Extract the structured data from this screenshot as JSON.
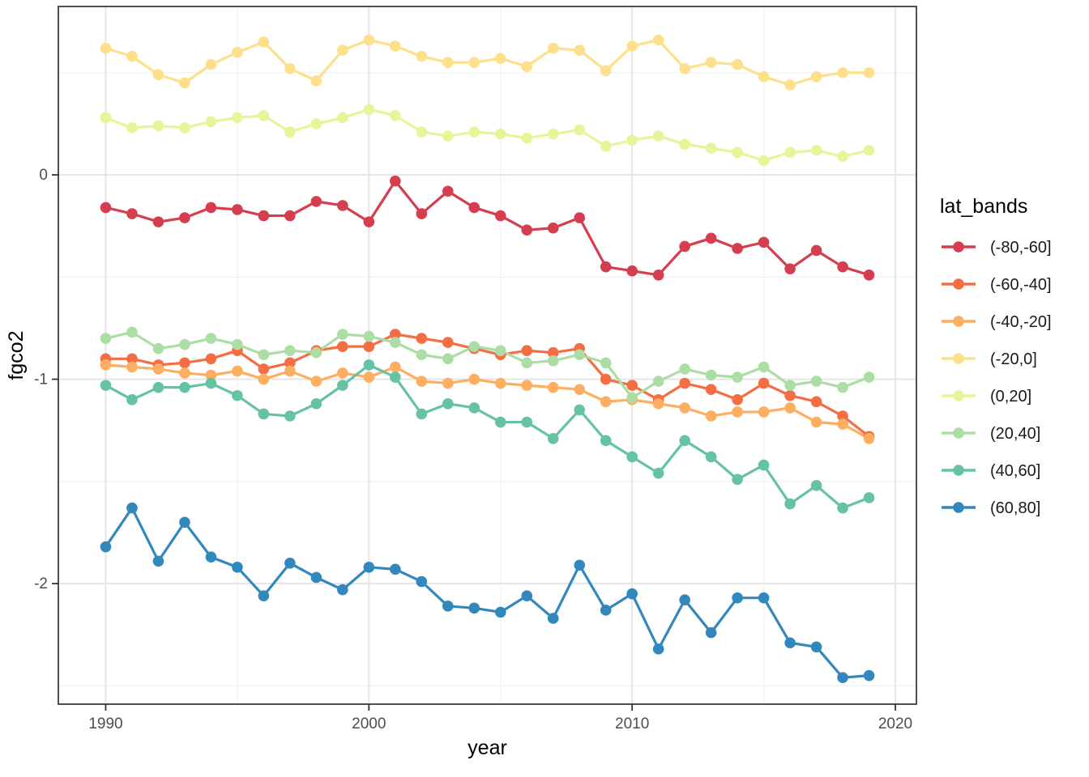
{
  "chart_data": {
    "type": "line",
    "title": "",
    "xlabel": "year",
    "ylabel": "fgco2",
    "legend_title": "lat_bands",
    "legend_position": "right",
    "grid": true,
    "xlim": [
      1988.2,
      2020.8
    ],
    "ylim": [
      -2.59,
      0.824
    ],
    "x_ticks": [
      1990,
      2000,
      2010,
      2020
    ],
    "x_tick_labels": [
      "1990",
      "2000",
      "2010",
      "2020"
    ],
    "x_minor": [
      1995,
      2005,
      2015
    ],
    "y_ticks": [
      0,
      -1,
      -2
    ],
    "y_tick_labels": [
      "0",
      "-1",
      "-2"
    ],
    "y_minor": [
      0.5,
      -0.5,
      -1.5,
      -2.5
    ],
    "x": [
      1990,
      1991,
      1992,
      1993,
      1994,
      1995,
      1996,
      1997,
      1998,
      1999,
      2000,
      2001,
      2002,
      2003,
      2004,
      2005,
      2006,
      2007,
      2008,
      2009,
      2010,
      2011,
      2012,
      2013,
      2014,
      2015,
      2016,
      2017,
      2018,
      2019
    ],
    "series": [
      {
        "name": "(-80,-60]",
        "color": "#d53e4f",
        "values": [
          -0.16,
          -0.19,
          -0.23,
          -0.21,
          -0.16,
          -0.17,
          -0.2,
          -0.2,
          -0.13,
          -0.15,
          -0.23,
          -0.03,
          -0.19,
          -0.08,
          -0.16,
          -0.2,
          -0.27,
          -0.26,
          -0.21,
          -0.45,
          -0.47,
          -0.49,
          -0.35,
          -0.31,
          -0.36,
          -0.33,
          -0.46,
          -0.37,
          -0.45,
          -0.49
        ]
      },
      {
        "name": "(-60,-40]",
        "color": "#f46d43",
        "values": [
          -0.9,
          -0.9,
          -0.93,
          -0.92,
          -0.9,
          -0.86,
          -0.95,
          -0.92,
          -0.86,
          -0.84,
          -0.84,
          -0.78,
          -0.8,
          -0.82,
          -0.85,
          -0.88,
          -0.86,
          -0.87,
          -0.85,
          -1.0,
          -1.03,
          -1.1,
          -1.02,
          -1.05,
          -1.1,
          -1.02,
          -1.08,
          -1.11,
          -1.18,
          -1.28
        ]
      },
      {
        "name": "(-40,-20]",
        "color": "#fdae61",
        "values": [
          -0.93,
          -0.94,
          -0.95,
          -0.97,
          -0.98,
          -0.96,
          -1.0,
          -0.96,
          -1.01,
          -0.97,
          -0.99,
          -0.94,
          -1.01,
          -1.02,
          -1.0,
          -1.02,
          -1.03,
          -1.04,
          -1.05,
          -1.11,
          -1.1,
          -1.12,
          -1.14,
          -1.18,
          -1.16,
          -1.16,
          -1.14,
          -1.21,
          -1.22,
          -1.29
        ]
      },
      {
        "name": "(-20,0]",
        "color": "#fee08b",
        "values": [
          0.62,
          0.58,
          0.49,
          0.45,
          0.54,
          0.6,
          0.65,
          0.52,
          0.46,
          0.61,
          0.66,
          0.63,
          0.58,
          0.55,
          0.55,
          0.57,
          0.53,
          0.62,
          0.61,
          0.51,
          0.63,
          0.66,
          0.52,
          0.55,
          0.54,
          0.48,
          0.44,
          0.48,
          0.5,
          0.5
        ]
      },
      {
        "name": "(0,20]",
        "color": "#e6f598",
        "values": [
          0.28,
          0.23,
          0.24,
          0.23,
          0.26,
          0.28,
          0.29,
          0.21,
          0.25,
          0.28,
          0.32,
          0.29,
          0.21,
          0.19,
          0.21,
          0.2,
          0.18,
          0.2,
          0.22,
          0.14,
          0.17,
          0.19,
          0.15,
          0.13,
          0.11,
          0.07,
          0.11,
          0.12,
          0.09,
          0.12
        ]
      },
      {
        "name": "(20,40]",
        "color": "#abdda4",
        "values": [
          -0.8,
          -0.77,
          -0.85,
          -0.83,
          -0.8,
          -0.83,
          -0.88,
          -0.86,
          -0.87,
          -0.78,
          -0.79,
          -0.82,
          -0.88,
          -0.9,
          -0.84,
          -0.86,
          -0.92,
          -0.91,
          -0.88,
          -0.92,
          -1.09,
          -1.01,
          -0.95,
          -0.98,
          -0.99,
          -0.94,
          -1.03,
          -1.01,
          -1.04,
          -0.99
        ]
      },
      {
        "name": "(40,60]",
        "color": "#66c2a5",
        "values": [
          -1.03,
          -1.1,
          -1.04,
          -1.04,
          -1.02,
          -1.08,
          -1.17,
          -1.18,
          -1.12,
          -1.03,
          -0.93,
          -0.99,
          -1.17,
          -1.12,
          -1.14,
          -1.21,
          -1.21,
          -1.29,
          -1.15,
          -1.3,
          -1.38,
          -1.46,
          -1.3,
          -1.38,
          -1.49,
          -1.42,
          -1.61,
          -1.52,
          -1.63,
          -1.58
        ]
      },
      {
        "name": "(60,80]",
        "color": "#3288bd",
        "values": [
          -1.82,
          -1.63,
          -1.89,
          -1.7,
          -1.87,
          -1.92,
          -2.06,
          -1.9,
          -1.97,
          -2.03,
          -1.92,
          -1.93,
          -1.99,
          -2.11,
          -2.12,
          -2.14,
          -2.06,
          -2.17,
          -1.91,
          -2.13,
          -2.05,
          -2.32,
          -2.08,
          -2.24,
          -2.07,
          -2.07,
          -2.29,
          -2.31,
          -2.46,
          -2.45
        ]
      }
    ],
    "style": {
      "panel_background": "#ffffff",
      "panel_border": "#3c3c3c",
      "grid_major": "#e6e6e6",
      "grid_minor": "#f0f0f0",
      "tick_color": "#333333",
      "tick_label_color": "#4d4d4d",
      "axis_title_color": "#000000",
      "legend_text_color": "#1a1a1a"
    }
  }
}
